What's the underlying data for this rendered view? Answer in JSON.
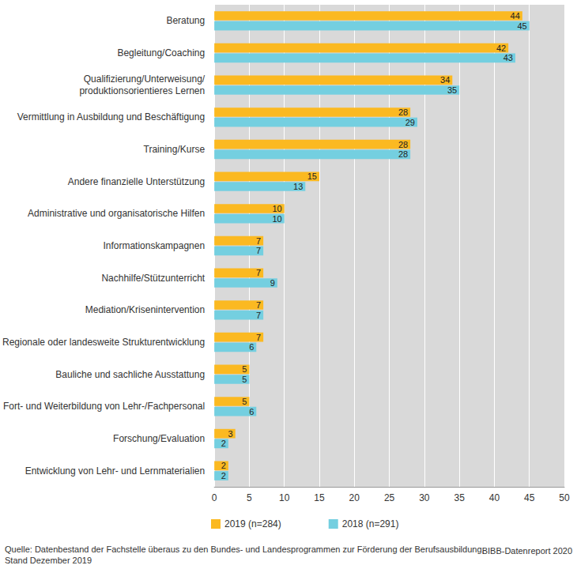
{
  "chart_data": {
    "type": "bar",
    "orientation": "horizontal",
    "categories": [
      "Beratung",
      "Begleitung/Coaching",
      "Qualifizierung/Unterweisung/\nproduktionsorientieres Lernen",
      "Vermittlung in Ausbildung und Beschäftigung",
      "Training/Kurse",
      "Andere finanzielle Unterstützung",
      "Administrative und organisatorische Hilfen",
      "Informationskampagnen",
      "Nachhilfe/Stützunterricht",
      "Mediation/Krisenintervention",
      "Regionale oder landesweite Strukturentwicklung",
      "Bauliche und sachliche Ausstattung",
      "Fort- und Weiterbildung von Lehr-/Fachpersonal",
      "Forschung/Evaluation",
      "Entwicklung von Lehr- und Lernmaterialien"
    ],
    "series": [
      {
        "name": "2019 (n=284)",
        "color": "#fbb921",
        "values": [
          44,
          42,
          34,
          28,
          28,
          15,
          10,
          7,
          7,
          7,
          7,
          5,
          5,
          3,
          2
        ]
      },
      {
        "name": "2018 (n=291)",
        "color": "#74cfe0",
        "values": [
          45,
          43,
          35,
          29,
          28,
          13,
          10,
          7,
          9,
          7,
          6,
          5,
          6,
          2,
          2
        ]
      }
    ],
    "xlim": [
      0,
      50
    ],
    "xticks": [
      0,
      5,
      10,
      15,
      20,
      25,
      30,
      35,
      40,
      45,
      50
    ],
    "grid": true,
    "legend": "bottom",
    "data_labels": true,
    "source": "Quelle: Datenbestand der Fachstelle überaus zu den Bundes- und Landesprogrammen zur Förderung der Berufsausbildung,\nStand Dezember 2019",
    "credit": "BIBB-Datenreport 2020"
  }
}
